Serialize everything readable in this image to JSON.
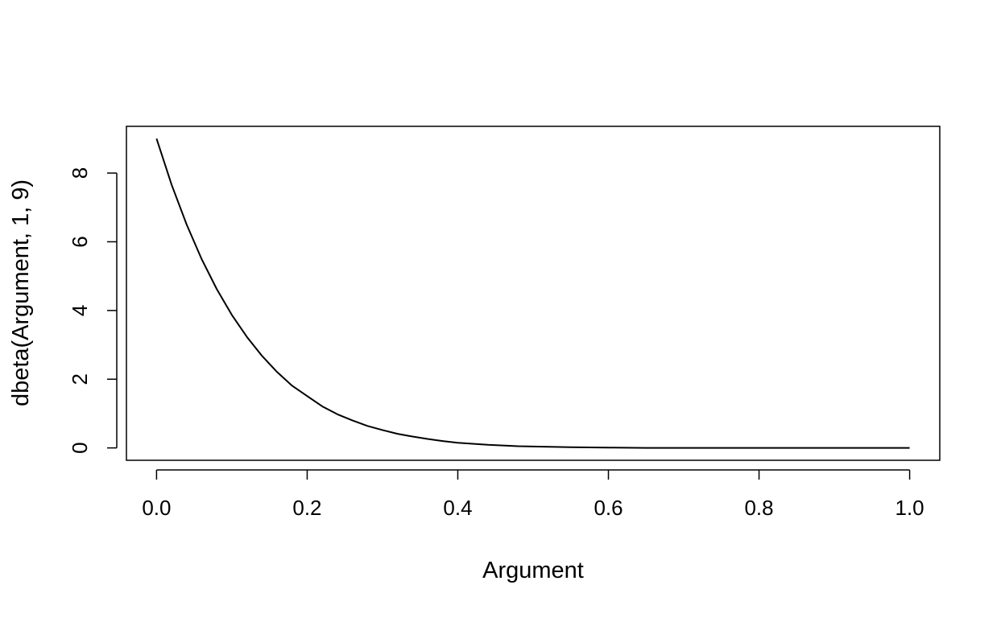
{
  "chart_data": {
    "type": "line",
    "title": "",
    "xlabel": "Argument",
    "ylabel": "dbeta(Argument, 1, 9)",
    "xlim": [
      -0.04,
      1.04
    ],
    "ylim": [
      -0.36,
      9.36
    ],
    "x_ticks": [
      0.0,
      0.2,
      0.4,
      0.6,
      0.8,
      1.0
    ],
    "x_tick_labels": [
      "0.0",
      "0.2",
      "0.4",
      "0.6",
      "0.8",
      "1.0"
    ],
    "y_ticks": [
      0,
      2,
      4,
      6,
      8
    ],
    "y_tick_labels": [
      "0",
      "2",
      "4",
      "6",
      "8"
    ],
    "grid": false,
    "legend": "none",
    "line_color": "#000000",
    "series": [
      {
        "x": [
          0.0,
          0.02,
          0.04,
          0.06,
          0.08,
          0.1,
          0.12,
          0.14,
          0.16,
          0.18,
          0.2,
          0.22,
          0.24,
          0.26,
          0.28,
          0.3,
          0.32,
          0.34,
          0.36,
          0.38,
          0.4,
          0.42,
          0.44,
          0.46,
          0.48,
          0.5,
          0.55,
          0.6,
          0.65,
          0.7,
          0.75,
          0.8,
          0.85,
          0.9,
          0.95,
          1.0
        ],
        "y": [
          9.0,
          7.66,
          6.5,
          5.49,
          4.62,
          3.87,
          3.23,
          2.68,
          2.21,
          1.81,
          1.51,
          1.21,
          0.98,
          0.8,
          0.64,
          0.52,
          0.41,
          0.33,
          0.26,
          0.2,
          0.15,
          0.12,
          0.09,
          0.07,
          0.05,
          0.04,
          0.02,
          0.01,
          0.0,
          0.0,
          0.0,
          0.0,
          0.0,
          0.0,
          0.0,
          0.0
        ]
      }
    ]
  }
}
